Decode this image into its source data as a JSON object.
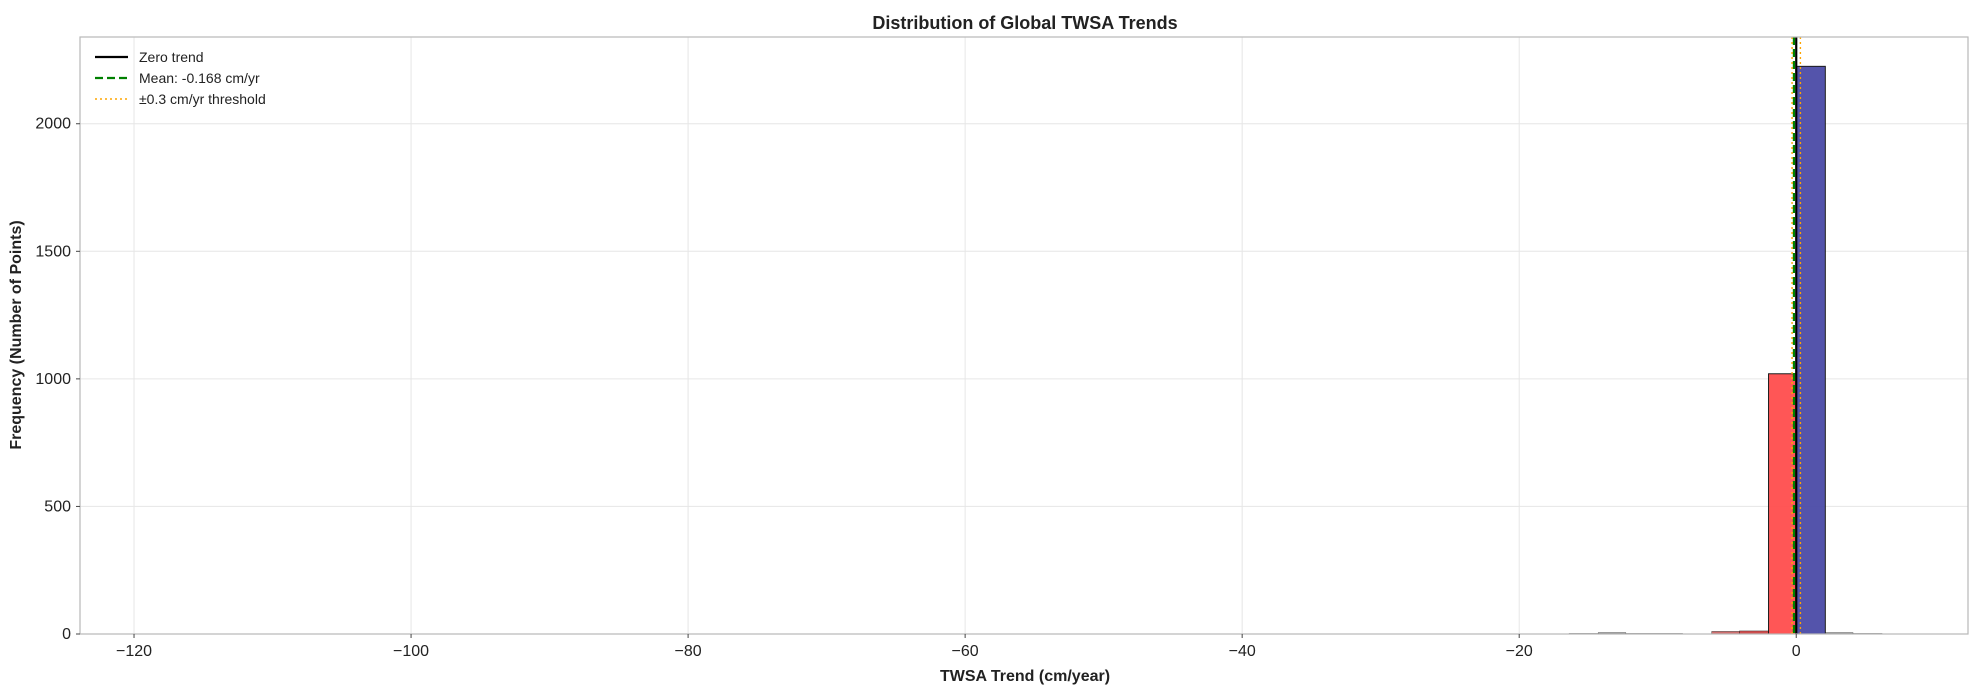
{
  "chart_data": {
    "type": "bar",
    "title": "Distribution of Global TWSA Trends",
    "xlabel": "TWSA Trend (cm/year)",
    "ylabel": "Frequency (Number of Points)",
    "xlim": [
      -123.9,
      12.4
    ],
    "ylim": [
      0,
      2340
    ],
    "xticks": [
      -120,
      -100,
      -80,
      -60,
      -40,
      -20,
      0
    ],
    "xtick_labels": [
      "−120",
      "−100",
      "−80",
      "−60",
      "−40",
      "−20",
      "0"
    ],
    "yticks": [
      0,
      500,
      1000,
      1500,
      2000
    ],
    "ytick_labels": [
      "0",
      "500",
      "1000",
      "1500",
      "2000"
    ],
    "grid": true,
    "bins": [
      {
        "x0": -28.7,
        "x1": -24.6,
        "value": 1,
        "color": "#d8d8d8"
      },
      {
        "x0": -22.6,
        "x1": -20.5,
        "value": 1,
        "color": "#d8d8d8"
      },
      {
        "x0": -16.4,
        "x1": -14.3,
        "value": 2,
        "color": "#d8d8d8"
      },
      {
        "x0": -14.3,
        "x1": -12.3,
        "value": 5,
        "color": "#8a8a8a"
      },
      {
        "x0": -12.3,
        "x1": -8.2,
        "value": 2,
        "color": "#d8d8d8"
      },
      {
        "x0": -6.1,
        "x1": -4.1,
        "value": 10,
        "color": "#cc6666"
      },
      {
        "x0": -4.1,
        "x1": -2.0,
        "value": 12,
        "color": "#cc4444"
      },
      {
        "x0": -2.0,
        "x1": 0.0,
        "value": 1020,
        "color": "#ff4d4d"
      },
      {
        "x0": 0.0,
        "x1": 2.1,
        "value": 2225,
        "color": "#4b4ba6"
      },
      {
        "x0": 2.1,
        "x1": 4.1,
        "value": 5,
        "color": "#8a8a8a"
      },
      {
        "x0": 4.1,
        "x1": 6.2,
        "value": 2,
        "color": "#d8d8d8"
      }
    ],
    "reference_lines": [
      {
        "name": "Zero trend",
        "x": 0,
        "color": "#000000",
        "style": "solid"
      },
      {
        "name": "Mean: -0.168 cm/yr",
        "x": -0.168,
        "color": "#008000",
        "style": "dashed"
      },
      {
        "name": "±0.3 cm/yr threshold",
        "x": -0.3,
        "color": "#ffa500",
        "style": "dotted"
      },
      {
        "name": "",
        "x": 0.3,
        "color": "#ffa500",
        "style": "dotted"
      }
    ],
    "legend": {
      "placement": "top-left",
      "entries": [
        {
          "label": "Zero trend",
          "color": "#000000",
          "style": "solid"
        },
        {
          "label": "Mean: -0.168 cm/yr",
          "color": "#008000",
          "style": "dashed"
        },
        {
          "label": "±0.3 cm/yr threshold",
          "color": "#ffa500",
          "style": "dotted"
        }
      ]
    }
  }
}
